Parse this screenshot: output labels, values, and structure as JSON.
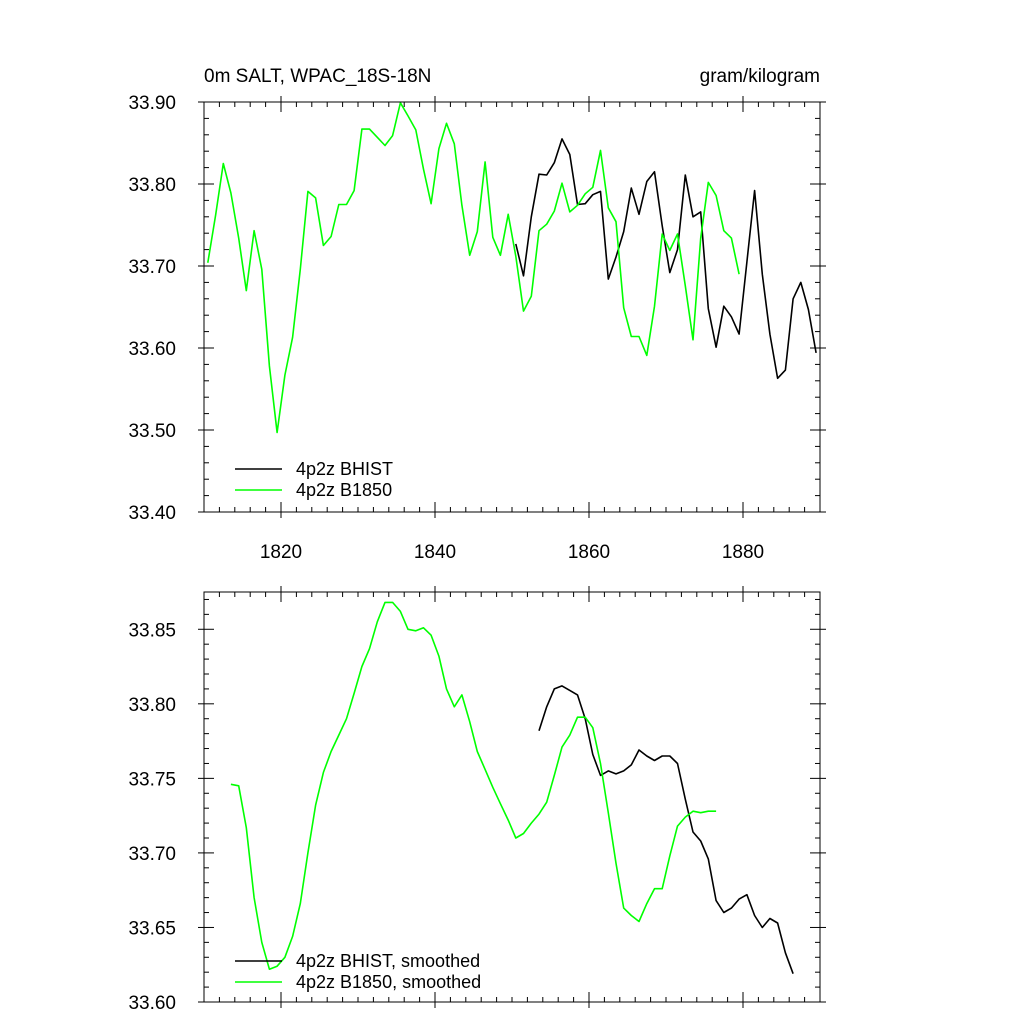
{
  "chart_data": [
    {
      "type": "line",
      "title": "0m SALT, WPAC_18S-18N",
      "units": "gram/kilogram",
      "xlim": [
        1810,
        1890
      ],
      "ylim": [
        33.4,
        33.9
      ],
      "xticks": [
        1820,
        1840,
        1860,
        1880
      ],
      "xtick_labels": [
        "1820",
        "1840",
        "1860",
        "1880"
      ],
      "yticks": [
        33.4,
        33.5,
        33.6,
        33.7,
        33.8,
        33.9
      ],
      "ytick_labels": [
        "33.40",
        "33.50",
        "33.60",
        "33.70",
        "33.80",
        "33.90"
      ],
      "legend_position": "bottom-left",
      "series": [
        {
          "name": "4p2z BHIST",
          "color": "#000000",
          "x": [
            1850.5,
            1851.5,
            1852.5,
            1853.5,
            1854.5,
            1855.5,
            1856.5,
            1857.5,
            1858.5,
            1859.5,
            1860.5,
            1861.5,
            1862.5,
            1863.5,
            1864.5,
            1865.5,
            1866.5,
            1867.5,
            1868.5,
            1869.5,
            1870.5,
            1871.5,
            1872.5,
            1873.5,
            1874.5,
            1875.5,
            1876.5,
            1877.5,
            1878.5,
            1879.5,
            1880.5,
            1881.5,
            1882.5,
            1883.5,
            1884.5,
            1885.5,
            1886.5,
            1887.5,
            1888.5,
            1889.5
          ],
          "values": [
            33.727,
            33.688,
            33.76,
            33.812,
            33.811,
            33.826,
            33.855,
            33.836,
            33.775,
            33.776,
            33.787,
            33.791,
            33.684,
            33.711,
            33.742,
            33.795,
            33.763,
            33.803,
            33.815,
            33.749,
            33.692,
            33.72,
            33.811,
            33.76,
            33.766,
            33.648,
            33.601,
            33.651,
            33.638,
            33.617,
            33.705,
            33.792,
            33.69,
            33.617,
            33.563,
            33.573,
            33.66,
            33.68,
            33.647,
            33.594
          ]
        },
        {
          "name": "4p2z B1850",
          "color": "#00ff00",
          "x": [
            1810.5,
            1811.5,
            1812.5,
            1813.5,
            1814.5,
            1815.5,
            1816.5,
            1817.5,
            1818.5,
            1819.5,
            1820.5,
            1821.5,
            1822.5,
            1823.5,
            1824.5,
            1825.5,
            1826.5,
            1827.5,
            1828.5,
            1829.5,
            1830.5,
            1831.5,
            1832.5,
            1833.5,
            1834.5,
            1835.5,
            1836.5,
            1837.5,
            1838.5,
            1839.5,
            1840.5,
            1841.5,
            1842.5,
            1843.5,
            1844.5,
            1845.5,
            1846.5,
            1847.5,
            1848.5,
            1849.5,
            1850.5,
            1851.5,
            1852.5,
            1853.5,
            1854.5,
            1855.5,
            1856.5,
            1857.5,
            1858.5,
            1859.5,
            1860.5,
            1861.5,
            1862.5,
            1863.5,
            1864.5,
            1865.5,
            1866.5,
            1867.5,
            1868.5,
            1869.5,
            1870.5,
            1871.5,
            1872.5,
            1873.5,
            1874.5,
            1875.5,
            1876.5,
            1877.5,
            1878.5,
            1879.5
          ],
          "values": [
            33.704,
            33.762,
            33.825,
            33.789,
            33.734,
            33.67,
            33.743,
            33.696,
            33.578,
            33.497,
            33.567,
            33.613,
            33.696,
            33.791,
            33.783,
            33.725,
            33.736,
            33.775,
            33.775,
            33.792,
            33.867,
            33.867,
            33.857,
            33.847,
            33.859,
            33.899,
            33.883,
            33.866,
            33.818,
            33.776,
            33.843,
            33.874,
            33.849,
            33.774,
            33.713,
            33.742,
            33.827,
            33.735,
            33.713,
            33.763,
            33.712,
            33.645,
            33.663,
            33.743,
            33.751,
            33.767,
            33.801,
            33.766,
            33.774,
            33.788,
            33.796,
            33.841,
            33.771,
            33.754,
            33.649,
            33.614,
            33.614,
            33.591,
            33.651,
            33.739,
            33.719,
            33.739,
            33.676,
            33.61,
            33.734,
            33.802,
            33.786,
            33.743,
            33.734,
            33.69
          ]
        }
      ]
    },
    {
      "type": "line",
      "title": "",
      "units": "",
      "xlim": [
        1810,
        1890
      ],
      "ylim": [
        33.6,
        33.875
      ],
      "xticks": [
        1820,
        1840,
        1860,
        1880
      ],
      "xtick_labels": [],
      "yticks": [
        33.6,
        33.65,
        33.7,
        33.75,
        33.8,
        33.85
      ],
      "ytick_labels": [
        "33.60",
        "33.65",
        "33.70",
        "33.75",
        "33.80",
        "33.85"
      ],
      "legend_position": "bottom-left",
      "series": [
        {
          "name": "4p2z BHIST, smoothed",
          "color": "#000000",
          "x": [
            1853.5,
            1854.5,
            1855.5,
            1856.5,
            1857.5,
            1858.5,
            1859.5,
            1860.5,
            1861.5,
            1862.5,
            1863.5,
            1864.5,
            1865.5,
            1866.5,
            1867.5,
            1868.5,
            1869.5,
            1870.5,
            1871.5,
            1872.5,
            1873.5,
            1874.5,
            1875.5,
            1876.5,
            1877.5,
            1878.5,
            1879.5,
            1880.5,
            1881.5,
            1882.5,
            1883.5,
            1884.5,
            1885.5,
            1886.5
          ],
          "values": [
            33.782,
            33.798,
            33.81,
            33.812,
            33.809,
            33.806,
            33.79,
            33.766,
            33.752,
            33.755,
            33.753,
            33.755,
            33.759,
            33.769,
            33.765,
            33.762,
            33.765,
            33.765,
            33.76,
            33.736,
            33.714,
            33.708,
            33.696,
            33.668,
            33.66,
            33.663,
            33.669,
            33.672,
            33.658,
            33.65,
            33.656,
            33.653,
            33.633,
            33.619
          ]
        },
        {
          "name": "4p2z B1850, smoothed",
          "color": "#00ff00",
          "x": [
            1813.5,
            1814.5,
            1815.5,
            1816.5,
            1817.5,
            1818.5,
            1819.5,
            1820.5,
            1821.5,
            1822.5,
            1823.5,
            1824.5,
            1825.5,
            1826.5,
            1827.5,
            1828.5,
            1829.5,
            1830.5,
            1831.5,
            1832.5,
            1833.5,
            1834.5,
            1835.5,
            1836.5,
            1837.5,
            1838.5,
            1839.5,
            1840.5,
            1841.5,
            1842.5,
            1843.5,
            1844.5,
            1845.5,
            1846.5,
            1847.5,
            1848.5,
            1849.5,
            1850.5,
            1851.5,
            1852.5,
            1853.5,
            1854.5,
            1855.5,
            1856.5,
            1857.5,
            1858.5,
            1859.5,
            1860.5,
            1861.5,
            1862.5,
            1863.5,
            1864.5,
            1865.5,
            1866.5,
            1867.5,
            1868.5,
            1869.5,
            1870.5,
            1871.5,
            1872.5,
            1873.5,
            1874.5,
            1875.5,
            1876.5
          ],
          "values": [
            33.746,
            33.745,
            33.717,
            33.67,
            33.64,
            33.622,
            33.624,
            33.63,
            33.644,
            33.666,
            33.7,
            33.732,
            33.754,
            33.768,
            33.779,
            33.79,
            33.807,
            33.825,
            33.837,
            33.855,
            33.868,
            33.868,
            33.862,
            33.85,
            33.849,
            33.851,
            33.846,
            33.832,
            33.81,
            33.798,
            33.806,
            33.788,
            33.768,
            33.756,
            33.744,
            33.733,
            33.722,
            33.71,
            33.713,
            33.72,
            33.726,
            33.734,
            33.752,
            33.771,
            33.779,
            33.791,
            33.791,
            33.784,
            33.76,
            33.727,
            33.693,
            33.663,
            33.658,
            33.654,
            33.666,
            33.676,
            33.676,
            33.698,
            33.718,
            33.724,
            33.728,
            33.727,
            33.728,
            33.728
          ]
        }
      ]
    }
  ]
}
